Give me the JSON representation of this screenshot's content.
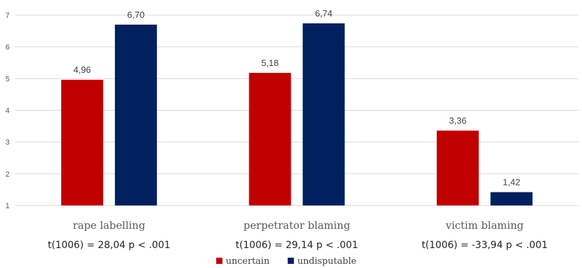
{
  "chart_data": {
    "type": "bar",
    "categories": [
      "rape labelling",
      "perpetrator blaming",
      "victim blaming"
    ],
    "category_stats": [
      "t(1006) = 28,04 p < .001",
      "t(1006) = 29,14 p < .001",
      "t(1006) = -33,94 p < .001"
    ],
    "series": [
      {
        "name": "uncertain",
        "values": [
          4.96,
          5.18,
          3.36
        ],
        "labels": [
          "4,96",
          "5,18",
          "3,36"
        ],
        "color": "#c00000"
      },
      {
        "name": "undisputable",
        "values": [
          6.7,
          6.74,
          1.42
        ],
        "labels": [
          "6,70",
          "6,74",
          "1,42"
        ],
        "color": "#002060"
      }
    ],
    "ylim": [
      1,
      7
    ],
    "yticks": [
      1,
      2,
      3,
      4,
      5,
      6,
      7
    ],
    "grid": true,
    "legend": "bottom-center",
    "title": "",
    "xlabel": "",
    "ylabel": ""
  }
}
